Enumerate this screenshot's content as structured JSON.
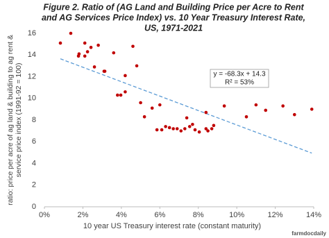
{
  "chart_data": {
    "type": "scatter",
    "title": [
      "Figure 2.  Ratio of (AG Land and Building Price per Acre to Rent",
      "and AG Services Price Index) vs. 10 Year Treasury Interest Rate,",
      "US, 1971-2021"
    ],
    "x_label": "10 year US Treasury interest rate (constant maturity)",
    "y_label": [
      "ratio: price per acre of ag land & building to ag rent &",
      "service price index (1991-92 = 100)"
    ],
    "annotation": [
      "y = -68.3x + 14.3",
      "R² = 53%"
    ],
    "logo": "farmdocdaily",
    "color": "#c00000",
    "trendline_color": "#5b9bd5",
    "x": [
      0.83,
      1.37,
      1.77,
      1.8,
      2.1,
      2.1,
      2.24,
      2.42,
      2.6,
      2.8,
      3.1,
      3.14,
      3.6,
      3.8,
      3.97,
      4.2,
      4.2,
      4.6,
      4.8,
      5.0,
      5.2,
      5.6,
      5.85,
      6.0,
      6.1,
      6.3,
      6.5,
      6.7,
      6.9,
      7.1,
      7.3,
      7.4,
      7.55,
      7.7,
      7.83,
      8.05,
      8.4,
      8.4,
      8.5,
      8.7,
      8.8,
      9.35,
      10.5,
      11.0,
      11.5,
      12.4,
      13.0,
      13.9
    ],
    "values": [
      15.1,
      16.0,
      13.9,
      14.1,
      15.1,
      13.9,
      14.3,
      14.7,
      12.9,
      14.9,
      12.5,
      12.5,
      14.2,
      10.3,
      10.3,
      12.1,
      10.6,
      14.8,
      13.0,
      9.6,
      8.3,
      9.1,
      7.1,
      9.4,
      7.1,
      7.4,
      7.3,
      7.2,
      7.2,
      7.0,
      7.2,
      8.2,
      7.4,
      7.6,
      7.1,
      6.9,
      8.7,
      7.2,
      7.0,
      7.2,
      7.5,
      9.3,
      8.3,
      9.4,
      8.9,
      9.3,
      8.5,
      9.0
    ],
    "xlim": [
      0,
      14
    ],
    "ylim": [
      0,
      16
    ],
    "xticks": [
      {
        "value": 0,
        "label": "0%"
      },
      {
        "value": 2,
        "label": "2%"
      },
      {
        "value": 4,
        "label": "4%"
      },
      {
        "value": 6,
        "label": "6%"
      },
      {
        "value": 8,
        "label": "8%"
      },
      {
        "value": 10,
        "label": "10%"
      },
      {
        "value": 12,
        "label": "12%"
      },
      {
        "value": 14,
        "label": "14%"
      }
    ],
    "yticks": [
      0,
      2,
      4,
      6,
      8,
      10,
      12,
      14,
      16
    ],
    "grid": false
  }
}
